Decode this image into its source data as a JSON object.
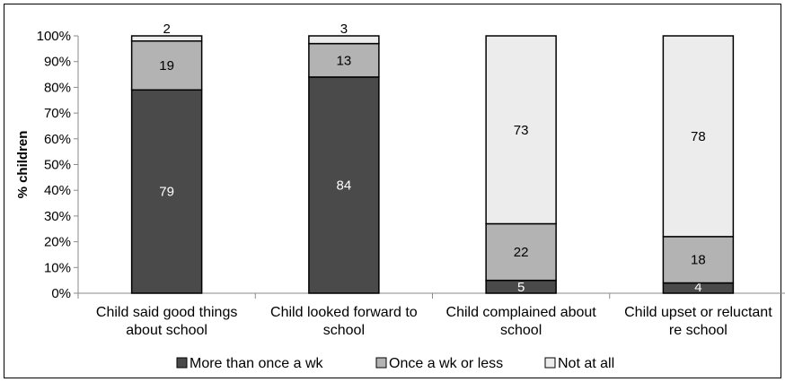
{
  "chart_data": {
    "type": "bar",
    "stacked": true,
    "normalized": true,
    "ylabel": "% children",
    "ylim": [
      0,
      100
    ],
    "y_ticks": [
      "0%",
      "10%",
      "20%",
      "30%",
      "40%",
      "50%",
      "60%",
      "70%",
      "80%",
      "90%",
      "100%"
    ],
    "categories": [
      [
        "Child said good things",
        "about school"
      ],
      [
        "Child looked forward to",
        "school"
      ],
      [
        "Child complained about",
        "school"
      ],
      [
        "Child upset or reluctant",
        "re school"
      ]
    ],
    "series": [
      {
        "name": "More than once a wk",
        "values": [
          79,
          84,
          5,
          4
        ],
        "color": "#4a4a4a",
        "label_color": "#ffffff"
      },
      {
        "name": "Once a wk or less",
        "values": [
          19,
          13,
          22,
          18
        ],
        "color": "#b3b3b3",
        "label_color": "#000000"
      },
      {
        "name": "Not at all",
        "values": [
          2,
          3,
          73,
          78
        ],
        "color": "#ececec",
        "label_color": "#000000"
      }
    ],
    "legend_position": "bottom",
    "grid": false
  }
}
